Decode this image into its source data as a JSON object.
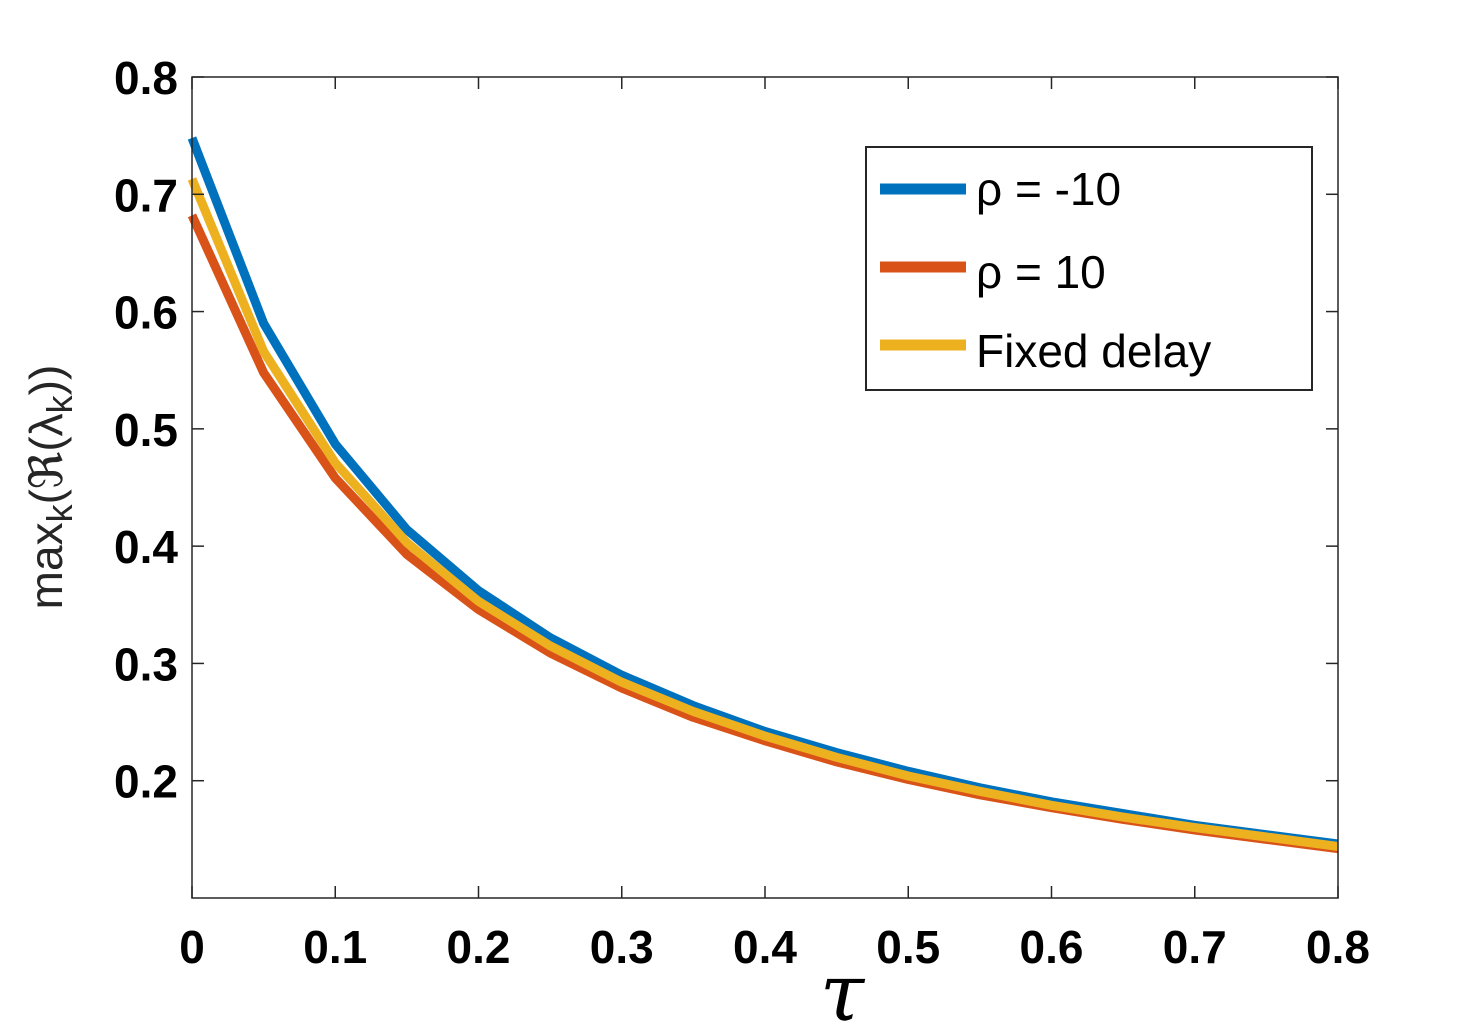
{
  "chart_data": {
    "type": "line",
    "xlabel": "τ",
    "ylabel": "max",
    "ylabel_sub": "k",
    "ylabel_rest": "(ℜ(λ",
    "ylabel_sub2": "k",
    "ylabel_close": "))",
    "xlim": [
      0,
      0.8
    ],
    "ylim": [
      0.1,
      0.8
    ],
    "xticks": [
      0,
      0.1,
      0.2,
      0.3,
      0.4,
      0.5,
      0.6,
      0.7,
      0.8
    ],
    "xtick_labels": [
      "0",
      "0.1",
      "0.2",
      "0.3",
      "0.4",
      "0.5",
      "0.6",
      "0.7",
      "0.8"
    ],
    "yticks": [
      0.2,
      0.3,
      0.4,
      0.5,
      0.6,
      0.7,
      0.8
    ],
    "ytick_labels": [
      "0.2",
      "0.3",
      "0.4",
      "0.5",
      "0.6",
      "0.7",
      "0.8"
    ],
    "x": [
      0,
      0.05,
      0.1,
      0.15,
      0.2,
      0.25,
      0.3,
      0.35,
      0.4,
      0.45,
      0.5,
      0.55,
      0.6,
      0.65,
      0.7,
      0.75,
      0.8
    ],
    "series": [
      {
        "name": "ρ = -10",
        "color": "#0072BD",
        "values": [
          0.748,
          0.59,
          0.487,
          0.414,
          0.362,
          0.322,
          0.29,
          0.264,
          0.242,
          0.224,
          0.208,
          0.194,
          0.182,
          0.172,
          0.162,
          0.154,
          0.146
        ]
      },
      {
        "name": "ρ = 10",
        "color": "#D95319",
        "values": [
          0.682,
          0.548,
          0.458,
          0.393,
          0.346,
          0.309,
          0.279,
          0.254,
          0.234,
          0.216,
          0.201,
          0.188,
          0.177,
          0.167,
          0.158,
          0.15,
          0.142
        ]
      },
      {
        "name": "Fixed delay",
        "color": "#EDB120",
        "values": [
          0.713,
          0.566,
          0.471,
          0.403,
          0.353,
          0.315,
          0.284,
          0.259,
          0.238,
          0.22,
          0.204,
          0.191,
          0.179,
          0.169,
          0.16,
          0.152,
          0.144
        ]
      }
    ],
    "legend_position": "top-right",
    "grid": false
  }
}
